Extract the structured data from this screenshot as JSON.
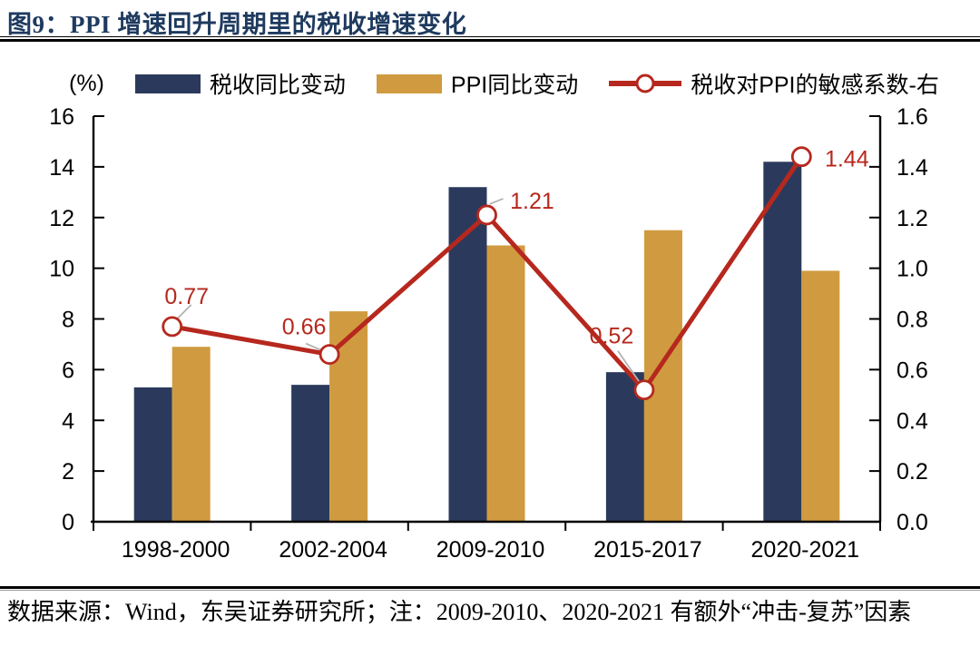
{
  "page": {
    "title": "图9：PPI 增速回升周期里的税收增速变化",
    "source_note": "数据来源：Wind，东吴证券研究所；注：2009-2010、2020-2021 有额外“冲击-复苏”因素"
  },
  "chart_data": {
    "type": "combo-bar-line",
    "title": "PPI 增速回升周期里的税收增速变化",
    "categories": [
      "1998-2000",
      "2002-2004",
      "2009-2010",
      "2015-2017",
      "2020-2021"
    ],
    "series": [
      {
        "name": "税收同比变动",
        "type": "bar",
        "axis": "left",
        "color": "#2b3a5c",
        "values": [
          5.3,
          5.4,
          13.2,
          5.9,
          14.2
        ]
      },
      {
        "name": "PPI同比变动",
        "type": "bar",
        "axis": "left",
        "color": "#d09b40",
        "values": [
          6.9,
          8.3,
          10.9,
          11.5,
          9.9
        ]
      },
      {
        "name": "税收对PPI的敏感系数-右",
        "type": "line",
        "axis": "right",
        "color": "#b6281e",
        "values": [
          0.77,
          0.66,
          1.21,
          0.52,
          1.44
        ],
        "labels": [
          "0.77",
          "0.66",
          "1.21",
          "0.52",
          "1.44"
        ]
      }
    ],
    "left_axis": {
      "unit": "(%)",
      "min": 0,
      "max": 16,
      "step": 2,
      "ticks": [
        "0",
        "2",
        "4",
        "6",
        "8",
        "10",
        "12",
        "14",
        "16"
      ]
    },
    "right_axis": {
      "min": 0,
      "max": 1.6,
      "step": 0.2,
      "ticks": [
        "0.0",
        "0.2",
        "0.4",
        "0.6",
        "0.8",
        "1.0",
        "1.2",
        "1.4",
        "1.6"
      ]
    },
    "legend_position": "top",
    "grid": false
  },
  "colors": {
    "title": "#1e3a5f",
    "axis": "#000000",
    "leader": "#b3b3b3",
    "marker_fill": "#ffffff"
  }
}
